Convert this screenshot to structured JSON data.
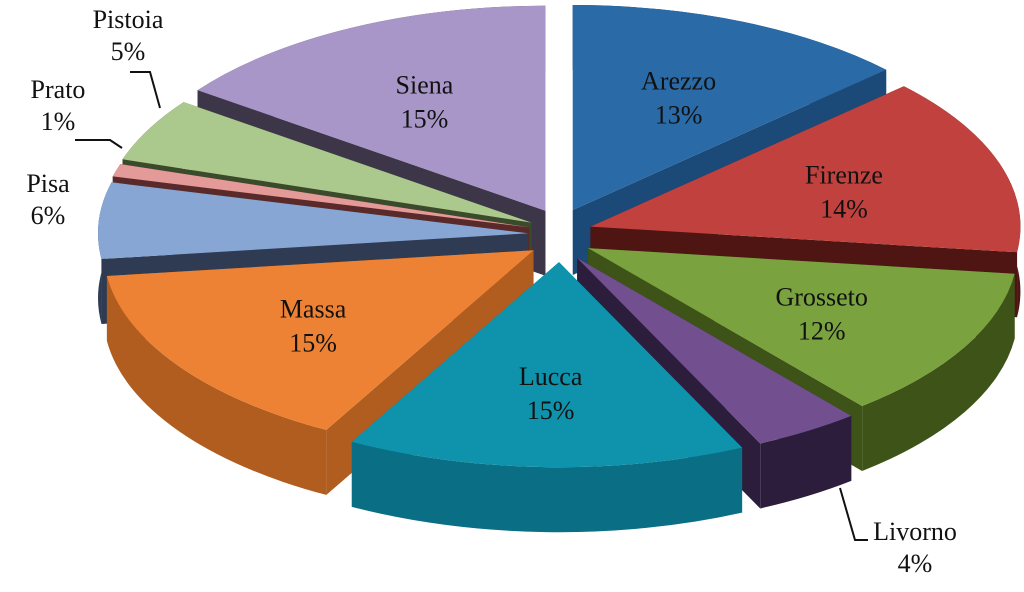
{
  "chart_data": {
    "type": "pie",
    "style": "3d-exploded",
    "legend": "none",
    "slices": [
      {
        "name": "Arezzo",
        "label": "13%",
        "value": 13,
        "color": "#2a6aa6",
        "side_color": "#1b4a78"
      },
      {
        "name": "Firenze",
        "label": "14%",
        "value": 14,
        "color": "#c0413d",
        "side_color": "#4e1512"
      },
      {
        "name": "Grosseto",
        "label": "12%",
        "value": 12,
        "color": "#7aa23e",
        "side_color": "#3d5317"
      },
      {
        "name": "Livorno",
        "label": "4%",
        "value": 4,
        "color": "#72508f",
        "side_color": "#2c1d3c"
      },
      {
        "name": "Lucca",
        "label": "15%",
        "value": 15,
        "color": "#0f93ad",
        "side_color": "#0a6f84"
      },
      {
        "name": "Massa",
        "label": "15%",
        "value": 15,
        "color": "#ee8234",
        "side_color": "#b05d1f"
      },
      {
        "name": "Pisa",
        "label": "6%",
        "value": 6,
        "color": "#87a6d4",
        "side_color": "#2f3b52"
      },
      {
        "name": "Prato",
        "label": "1%",
        "value": 1,
        "color": "#e39a98",
        "side_color": "#5a2a2a"
      },
      {
        "name": "Pistoia",
        "label": "5%",
        "value": 5,
        "color": "#abc98d",
        "side_color": "#3c4a2c"
      },
      {
        "name": "Siena",
        "label": "15%",
        "value": 15,
        "color": "#a896c8",
        "side_color": "#3c3648"
      }
    ]
  }
}
